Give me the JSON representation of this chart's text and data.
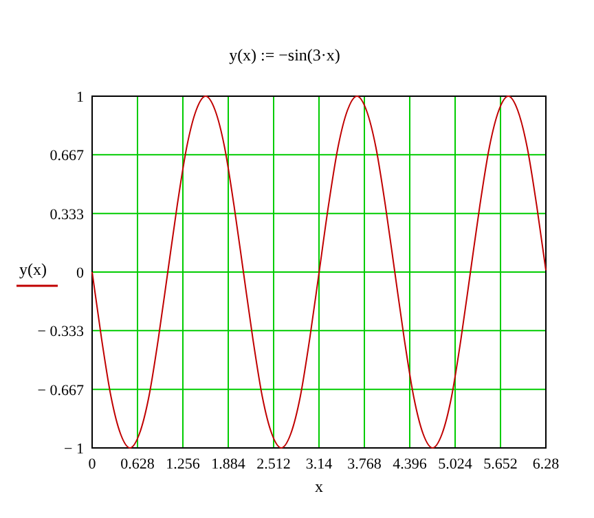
{
  "chart_data": {
    "type": "line",
    "title": "y(x) := −sin(3·x)",
    "xlabel": "x",
    "x": [
      0,
      0.131,
      0.262,
      0.393,
      0.524,
      0.654,
      0.785,
      0.916,
      1.047,
      1.178,
      1.309,
      1.44,
      1.571,
      1.702,
      1.833,
      1.963,
      2.094,
      2.225,
      2.356,
      2.487,
      2.618,
      2.749,
      2.88,
      3.011,
      3.142,
      3.272,
      3.403,
      3.534,
      3.665,
      3.796,
      3.927,
      4.058,
      4.189,
      4.32,
      4.451,
      4.581,
      4.712,
      4.843,
      4.974,
      5.105,
      5.236,
      5.367,
      5.498,
      5.629,
      5.76,
      5.89,
      6.021,
      6.152,
      6.28
    ],
    "series": [
      {
        "name": "y(x)",
        "color": "#c00000",
        "values": [
          0,
          -0.38,
          -0.71,
          -0.92,
          -1,
          -0.92,
          -0.71,
          -0.38,
          0,
          0.38,
          0.71,
          0.92,
          1,
          0.92,
          0.71,
          0.38,
          0,
          -0.38,
          -0.71,
          -0.92,
          -1,
          -0.92,
          -0.71,
          -0.38,
          0,
          0.38,
          0.71,
          0.92,
          1,
          0.92,
          0.71,
          0.38,
          0,
          -0.38,
          -0.71,
          -0.92,
          -1,
          -0.92,
          -0.71,
          -0.38,
          0,
          0.38,
          0.71,
          0.92,
          1,
          0.92,
          0.71,
          0.38,
          0.01
        ]
      }
    ],
    "xlim": [
      0,
      6.28
    ],
    "xticks": [
      0,
      0.628,
      1.256,
      1.884,
      2.512,
      3.14,
      3.768,
      4.396,
      5.024,
      5.652,
      6.28
    ],
    "ylim": [
      -1,
      1
    ],
    "yticks": [
      {
        "value": -1,
        "label": "− 1"
      },
      {
        "value": -0.667,
        "label": "− 0.667"
      },
      {
        "value": -0.333,
        "label": "− 0.333"
      },
      0,
      0.333,
      0.667,
      1
    ],
    "grid": true,
    "legend": "left",
    "marker": "none",
    "line_style": "solid"
  }
}
